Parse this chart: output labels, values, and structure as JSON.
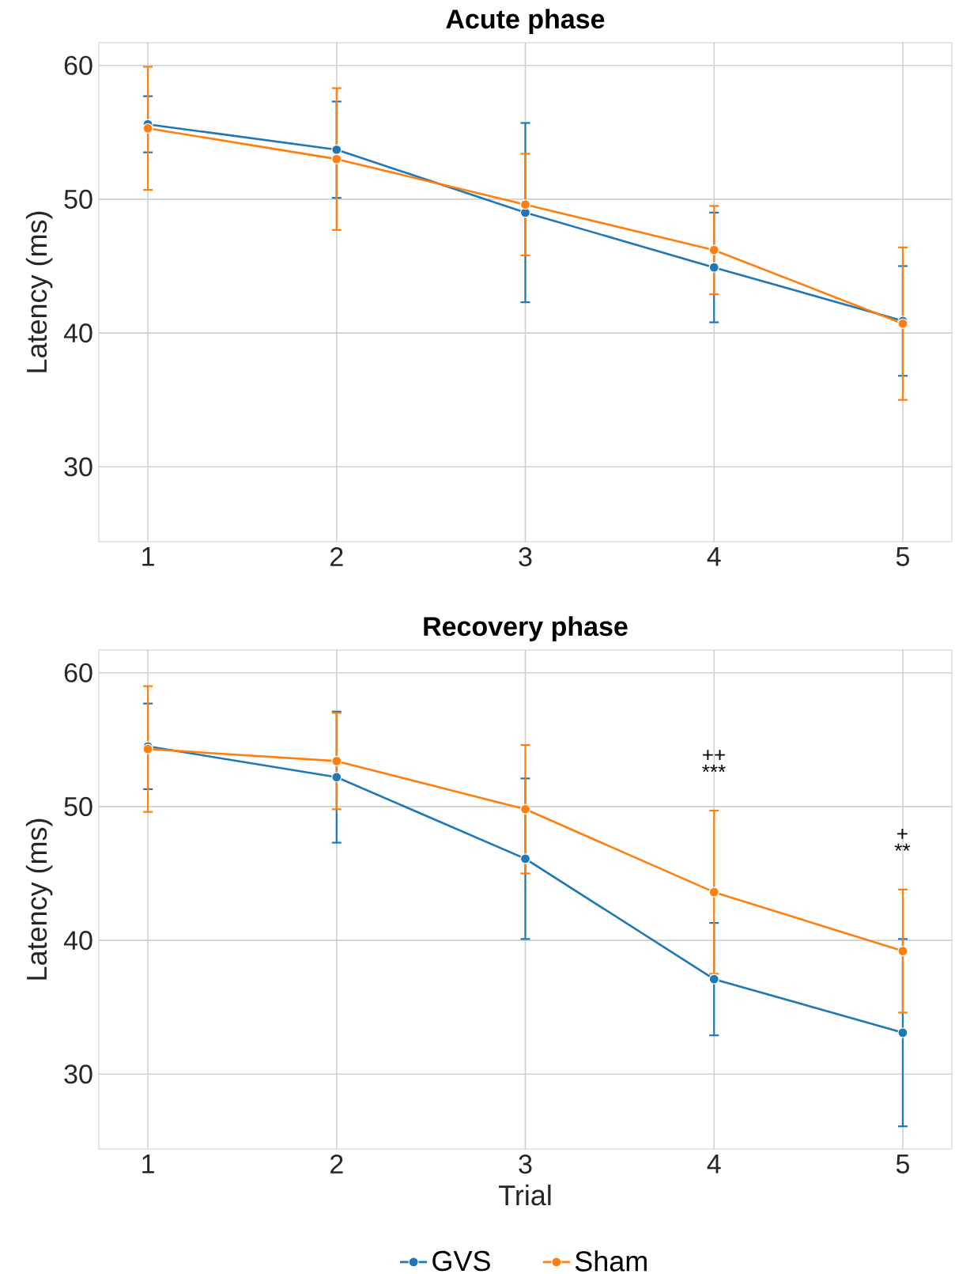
{
  "chart_data": [
    {
      "type": "line",
      "title": "Acute phase",
      "ylabel": "Latency (ms)",
      "x": [
        1,
        2,
        3,
        4,
        5
      ],
      "xlim": [
        0.74,
        5.26
      ],
      "ylim": [
        24.4,
        61.7
      ],
      "xticks": [
        1,
        2,
        3,
        4,
        5
      ],
      "yticks": [
        30,
        40,
        50,
        60
      ],
      "grid": true,
      "marker": "circle",
      "series": [
        {
          "color": "#1f77b4",
          "values": [
            55.6,
            53.7,
            49.0,
            44.9,
            40.9
          ],
          "errors": [
            2.1,
            3.6,
            6.7,
            4.1,
            4.1
          ]
        },
        {
          "color": "#ff7f0e",
          "values": [
            55.3,
            53.0,
            49.6,
            46.2,
            40.7
          ],
          "errors": [
            4.6,
            5.3,
            3.8,
            3.3,
            5.7
          ]
        }
      ]
    },
    {
      "type": "line",
      "title": "Recovery phase",
      "xlabel": "Trial",
      "ylabel": "Latency (ms)",
      "x": [
        1,
        2,
        3,
        4,
        5
      ],
      "xlim": [
        0.74,
        5.26
      ],
      "ylim": [
        24.4,
        61.7
      ],
      "xticks": [
        1,
        2,
        3,
        4,
        5
      ],
      "yticks": [
        30,
        40,
        50,
        60
      ],
      "grid": true,
      "marker": "circle",
      "legend": "bottom",
      "series": [
        {
          "name": "GVS",
          "color": "#1f77b4",
          "values": [
            54.5,
            52.2,
            46.1,
            37.1,
            33.1
          ],
          "errors": [
            3.2,
            4.9,
            6.0,
            4.2,
            7.0
          ]
        },
        {
          "name": "Sham",
          "color": "#ff7f0e",
          "values": [
            54.3,
            53.4,
            49.8,
            43.6,
            39.2
          ],
          "errors": [
            4.7,
            3.6,
            4.8,
            6.1,
            4.6
          ]
        }
      ],
      "annotations": [
        "++",
        "***",
        "+",
        "**"
      ]
    }
  ]
}
